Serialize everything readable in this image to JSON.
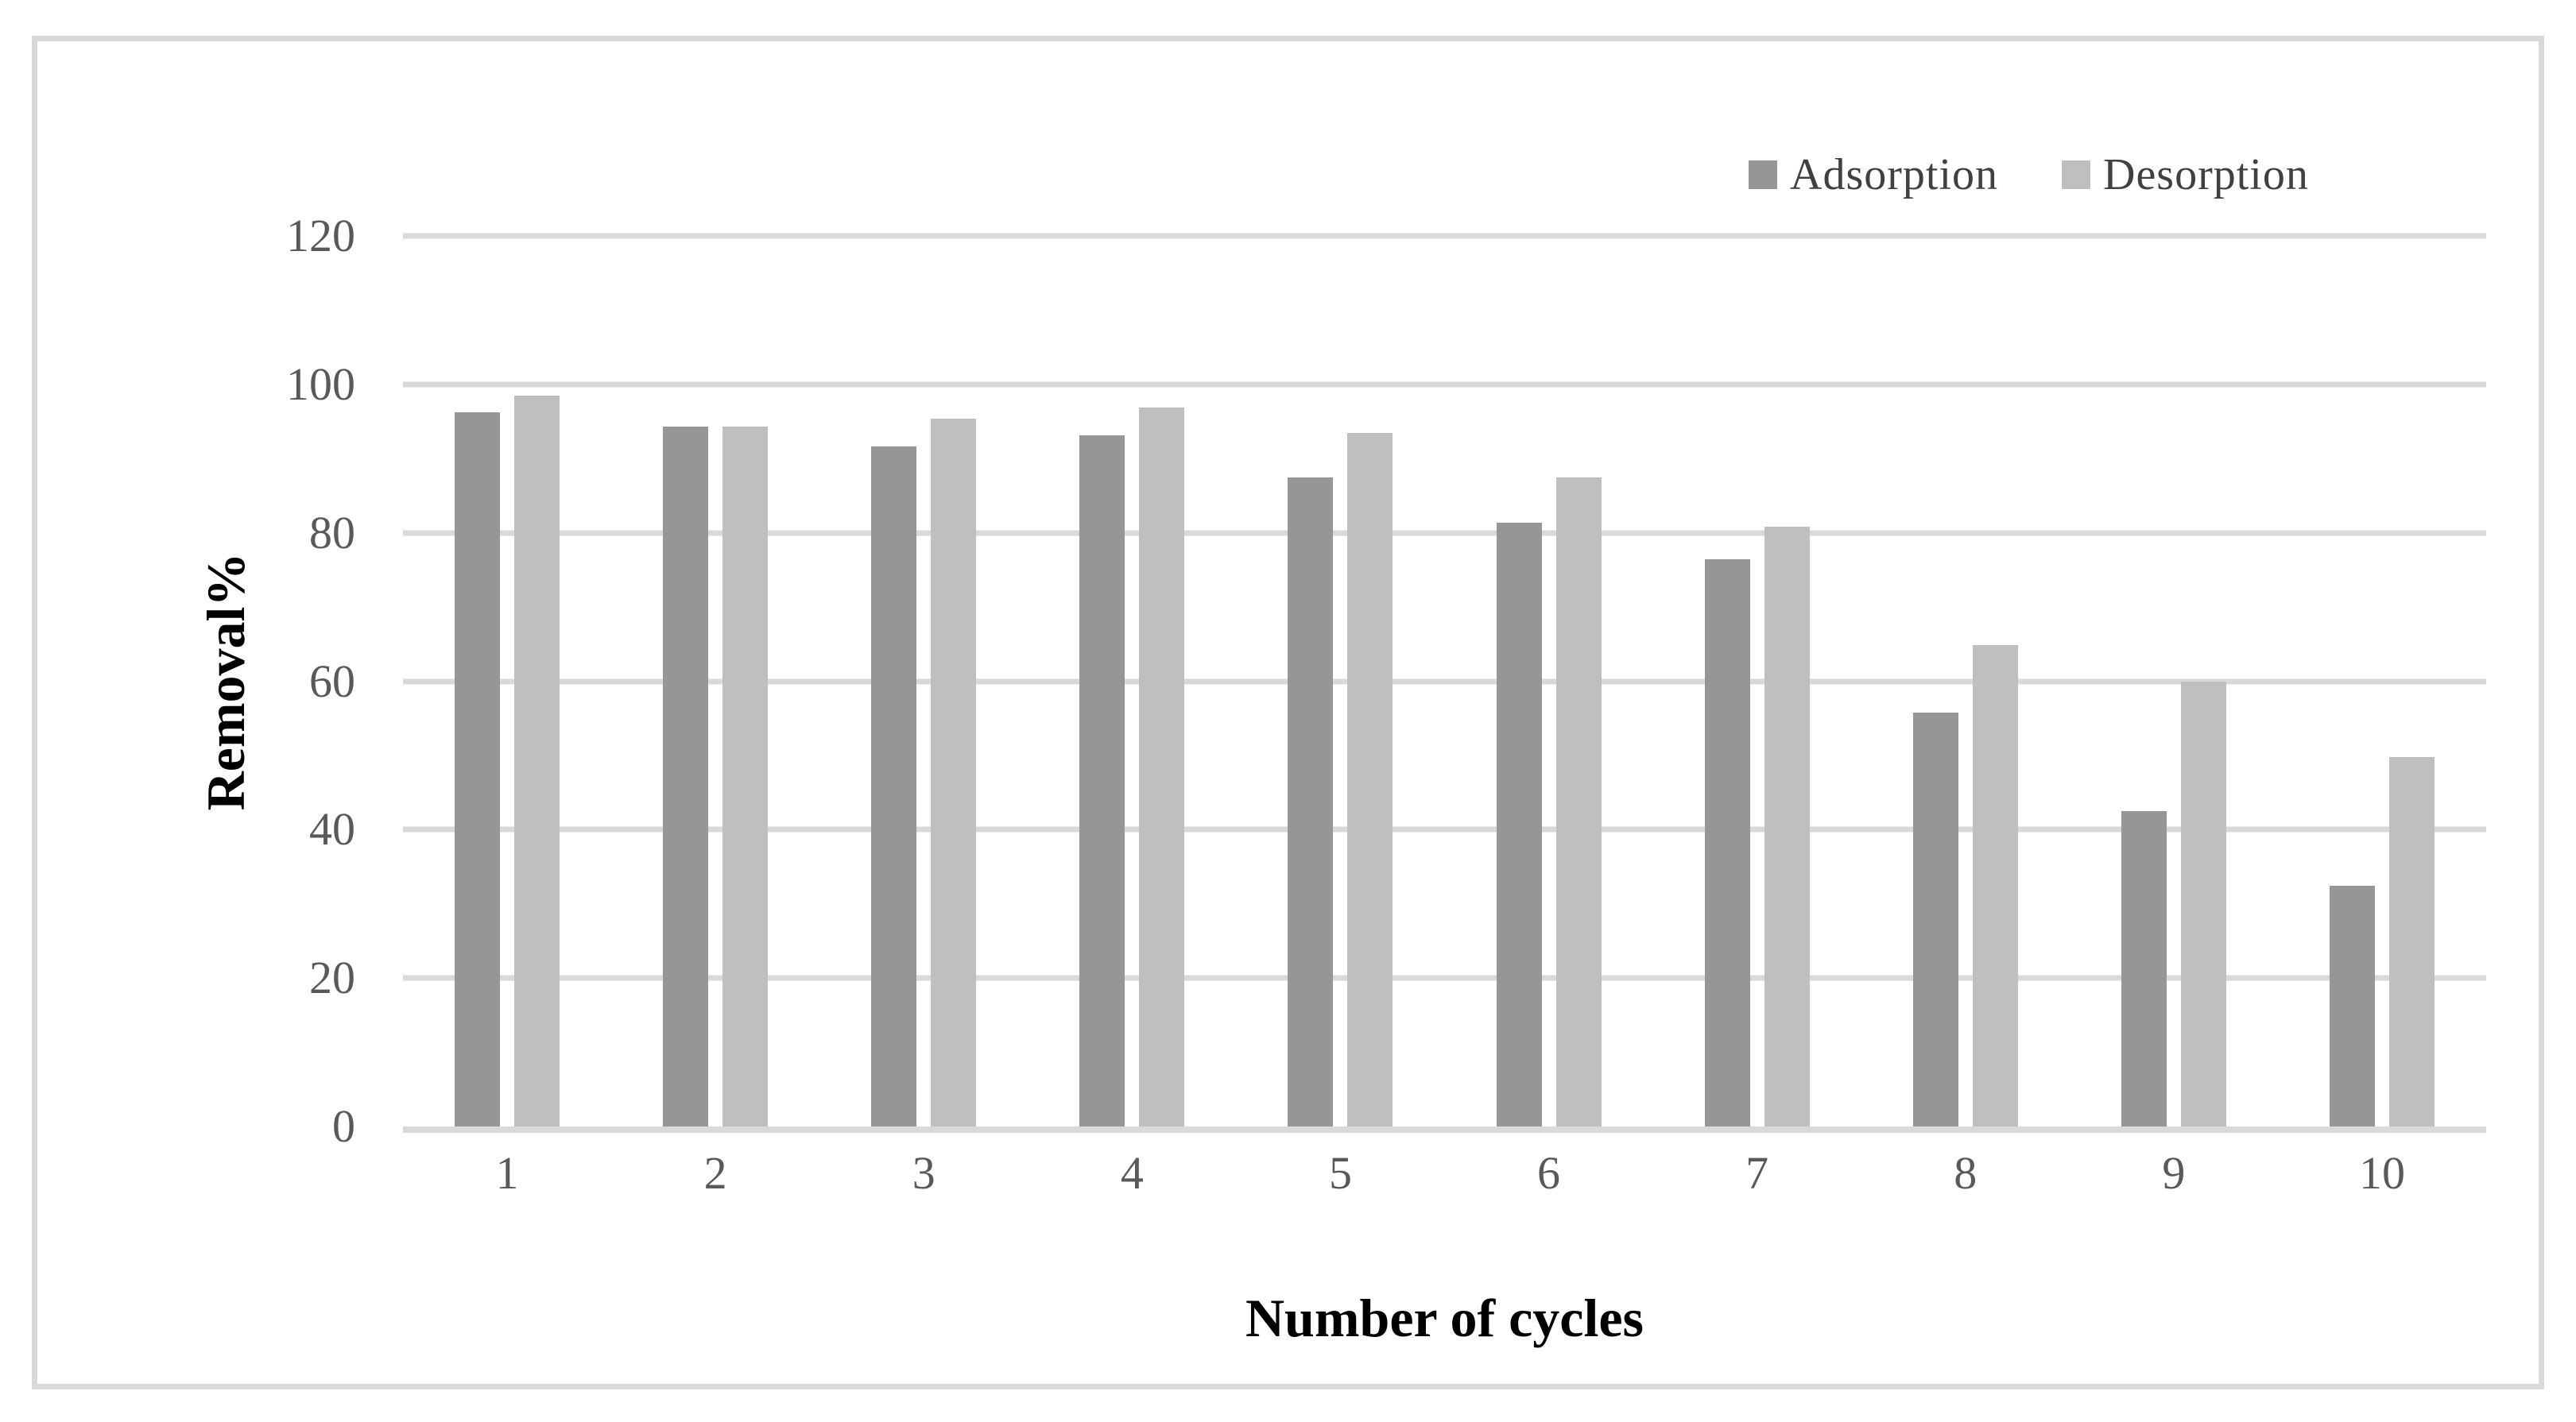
{
  "figure": {
    "background_color": "#ffffff",
    "border_color": "#d9d9d9"
  },
  "chart_data": {
    "type": "bar",
    "title": "",
    "xlabel": "Number of cycles",
    "ylabel": "Removal%",
    "categories": [
      "1",
      "2",
      "3",
      "4",
      "5",
      "6",
      "7",
      "8",
      "9",
      "10"
    ],
    "series": [
      {
        "name": "Adsorption",
        "color": "#969696",
        "values": [
          96.2,
          94.3,
          91.6,
          93.1,
          87.5,
          81.4,
          76.4,
          55.8,
          42.5,
          32.4
        ]
      },
      {
        "name": "Desorption",
        "color": "#bfbfbf",
        "values": [
          98.5,
          94.3,
          95.4,
          96.9,
          93.5,
          87.5,
          80.8,
          64.9,
          60.0,
          49.8
        ]
      }
    ],
    "ylim": [
      0,
      120
    ],
    "y_ticks": [
      0,
      20,
      40,
      60,
      80,
      100,
      120
    ],
    "grid": "horizontal",
    "gridline_color": "#d9d9d9",
    "baseline_color": "#d9d9d9",
    "tick_label_color": "#595959",
    "axis_title_color": "#000000",
    "legend": {
      "position": "top-right",
      "text_color": "#404040"
    }
  }
}
